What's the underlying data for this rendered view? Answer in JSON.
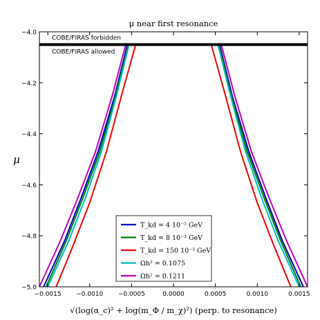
{
  "chart_data": {
    "type": "line",
    "title": "μ near first resonance",
    "xlabel": "√(log(α_c)² + log(m_Φ / m_χ)²) (perp. to resonance)",
    "ylabel": "μ",
    "xlim": [
      -0.0016,
      0.0016
    ],
    "ylim": [
      -5.0,
      -4.0
    ],
    "xticks": [
      "−0.0015",
      "−0.0010",
      "−0.0005",
      "0.0000",
      "0.0005",
      "0.0010",
      "0.0015"
    ],
    "yticks": [
      "−5.0",
      "−4.8",
      "−4.6",
      "−4.4",
      "−4.2",
      "−4.0"
    ],
    "grid": false,
    "legend_position": "lower-center",
    "limit_line": {
      "y": -4.05,
      "above_label": "COBE/FIRAS forbidden",
      "below_label": "COBE/FIRAS allowed"
    },
    "series": [
      {
        "name": "T_kd = 4 10⁻³ GeV",
        "color": "#0000cc",
        "points": [
          [
            -0.00155,
            -5.0
          ],
          [
            -0.0013,
            -4.82
          ],
          [
            -0.0011,
            -4.65
          ],
          [
            -0.0009,
            -4.47
          ],
          [
            -0.0007,
            -4.25
          ],
          [
            -0.00055,
            -4.05
          ],
          [
            0.00055,
            -4.05
          ],
          [
            0.0007,
            -4.25
          ],
          [
            0.0009,
            -4.47
          ],
          [
            0.0011,
            -4.65
          ],
          [
            0.0013,
            -4.82
          ],
          [
            0.00155,
            -5.0
          ]
        ]
      },
      {
        "name": "T_kd = 8 10⁻³ GeV",
        "color": "#007a00",
        "points": [
          [
            -0.00152,
            -5.0
          ],
          [
            -0.00128,
            -4.82
          ],
          [
            -0.00108,
            -4.65
          ],
          [
            -0.00088,
            -4.47
          ],
          [
            -0.00069,
            -4.25
          ],
          [
            -0.00054,
            -4.05
          ],
          [
            0.00054,
            -4.05
          ],
          [
            0.00069,
            -4.25
          ],
          [
            0.00088,
            -4.47
          ],
          [
            0.00108,
            -4.65
          ],
          [
            0.00128,
            -4.82
          ],
          [
            0.00152,
            -5.0
          ]
        ]
      },
      {
        "name": "T_kd = 150 10⁻³ GeV",
        "color": "#ee0000",
        "points": [
          [
            -0.0014,
            -5.0
          ],
          [
            -0.0012,
            -4.84
          ],
          [
            -0.001,
            -4.67
          ],
          [
            -0.0008,
            -4.47
          ],
          [
            -0.00062,
            -4.25
          ],
          [
            -0.00045,
            -4.05
          ],
          [
            0.00045,
            -4.05
          ],
          [
            0.00062,
            -4.25
          ],
          [
            0.0008,
            -4.47
          ],
          [
            0.001,
            -4.67
          ],
          [
            0.0012,
            -4.84
          ],
          [
            0.0014,
            -5.0
          ]
        ]
      },
      {
        "name": "Ωh² = 0.1075",
        "color": "#00bbbb",
        "points": [
          [
            -0.0015,
            -5.0
          ],
          [
            -0.00125,
            -4.82
          ],
          [
            -0.00105,
            -4.65
          ],
          [
            -0.00086,
            -4.47
          ],
          [
            -0.00068,
            -4.25
          ],
          [
            -0.00053,
            -4.05
          ],
          [
            0.00053,
            -4.05
          ],
          [
            0.00068,
            -4.25
          ],
          [
            0.00086,
            -4.47
          ],
          [
            0.00105,
            -4.65
          ],
          [
            0.00125,
            -4.82
          ],
          [
            0.0015,
            -5.0
          ]
        ]
      },
      {
        "name": "Ωh² = 0.1211",
        "color": "#bb00bb",
        "points": [
          [
            -0.0016,
            -5.0
          ],
          [
            -0.00135,
            -4.82
          ],
          [
            -0.00114,
            -4.65
          ],
          [
            -0.00093,
            -4.47
          ],
          [
            -0.00073,
            -4.25
          ],
          [
            -0.00057,
            -4.05
          ],
          [
            0.00057,
            -4.05
          ],
          [
            0.00073,
            -4.25
          ],
          [
            0.00093,
            -4.47
          ],
          [
            0.00114,
            -4.65
          ],
          [
            0.00135,
            -4.82
          ],
          [
            0.0016,
            -5.0
          ]
        ]
      }
    ]
  }
}
